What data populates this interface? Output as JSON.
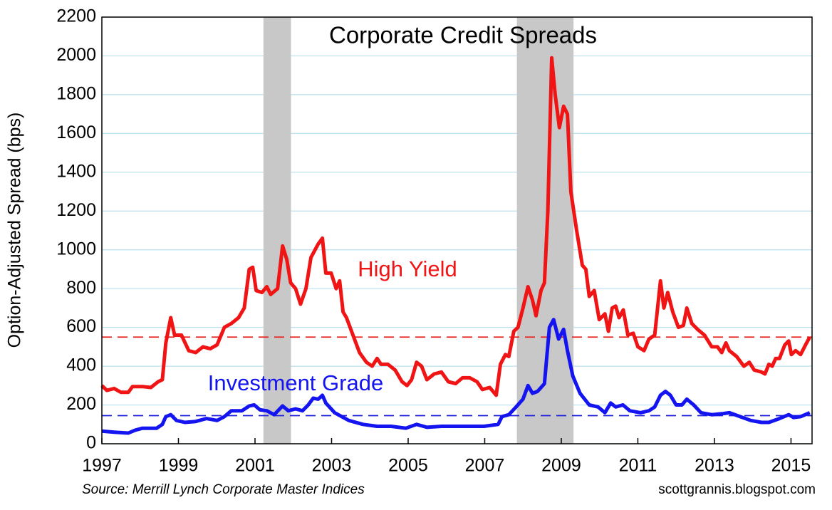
{
  "chart_data": {
    "type": "line",
    "title": "Corporate Credit Spreads",
    "y_label": "Option-Adjusted Spread (bps)",
    "source": "Source: Merrill Lynch Corporate Master Indices",
    "credit": "scottgrannis.blogspot.com",
    "xlim": [
      1997,
      2015.55
    ],
    "ylim": [
      0,
      2200
    ],
    "xticks": [
      1997,
      1999,
      2001,
      2003,
      2005,
      2007,
      2009,
      2011,
      2013,
      2015
    ],
    "yticks": [
      0,
      200,
      400,
      600,
      800,
      1000,
      1200,
      1400,
      1600,
      1800,
      2000,
      2200
    ],
    "grid": true,
    "shaded_periods": [
      [
        2001.22,
        2001.94
      ],
      [
        2007.84,
        2009.32
      ]
    ],
    "shade_color": "#c8c8c8",
    "reference_lines": [
      {
        "value": 550,
        "color": "#e8231f"
      },
      {
        "value": 145,
        "color": "#1f1fe0"
      }
    ],
    "series": [
      {
        "name": "High Yield",
        "color": "#f01414",
        "x": [
          1997.0,
          1997.13,
          1997.32,
          1997.5,
          1997.69,
          1997.8,
          1998.06,
          1998.28,
          1998.47,
          1998.58,
          1998.67,
          1998.8,
          1998.9,
          1999.08,
          1999.27,
          1999.45,
          1999.64,
          1999.83,
          2000.01,
          2000.2,
          2000.38,
          2000.57,
          2000.72,
          2000.85,
          2000.94,
          2001.03,
          2001.18,
          2001.31,
          2001.41,
          2001.59,
          2001.72,
          2001.83,
          2001.93,
          2002.06,
          2002.19,
          2002.33,
          2002.46,
          2002.65,
          2002.76,
          2002.85,
          2002.99,
          2003.12,
          2003.21,
          2003.3,
          2003.39,
          2003.54,
          2003.73,
          2003.91,
          2004.06,
          2004.19,
          2004.29,
          2004.47,
          2004.66,
          2004.84,
          2004.97,
          2005.09,
          2005.22,
          2005.35,
          2005.49,
          2005.68,
          2005.87,
          2006.05,
          2006.24,
          2006.42,
          2006.61,
          2006.8,
          2006.94,
          2007.13,
          2007.3,
          2007.41,
          2007.54,
          2007.63,
          2007.76,
          2007.87,
          2008.0,
          2008.13,
          2008.25,
          2008.34,
          2008.47,
          2008.56,
          2008.65,
          2008.75,
          2008.84,
          2008.95,
          2009.06,
          2009.16,
          2009.25,
          2009.4,
          2009.55,
          2009.64,
          2009.73,
          2009.86,
          2009.99,
          2010.14,
          2010.23,
          2010.33,
          2010.42,
          2010.51,
          2010.62,
          2010.74,
          2010.88,
          2011.0,
          2011.16,
          2011.29,
          2011.44,
          2011.59,
          2011.68,
          2011.78,
          2011.91,
          2012.06,
          2012.19,
          2012.28,
          2012.41,
          2012.56,
          2012.74,
          2012.93,
          2013.08,
          2013.19,
          2013.3,
          2013.39,
          2013.58,
          2013.77,
          2013.91,
          2014.04,
          2014.23,
          2014.32,
          2014.42,
          2014.51,
          2014.6,
          2014.7,
          2014.84,
          2014.94,
          2015.01,
          2015.12,
          2015.25,
          2015.38,
          2015.49
        ],
        "values": [
          300,
          275,
          285,
          265,
          265,
          295,
          295,
          290,
          320,
          330,
          520,
          650,
          560,
          560,
          480,
          470,
          500,
          490,
          510,
          600,
          620,
          650,
          700,
          900,
          910,
          790,
          780,
          810,
          770,
          800,
          1020,
          950,
          830,
          800,
          720,
          800,
          960,
          1030,
          1060,
          880,
          880,
          800,
          840,
          680,
          650,
          570,
          470,
          420,
          400,
          440,
          410,
          410,
          380,
          320,
          300,
          330,
          420,
          400,
          330,
          360,
          370,
          320,
          310,
          340,
          340,
          320,
          280,
          290,
          250,
          410,
          460,
          450,
          580,
          600,
          700,
          810,
          740,
          660,
          790,
          830,
          1200,
          1990,
          1800,
          1630,
          1740,
          1700,
          1300,
          1100,
          920,
          900,
          760,
          790,
          640,
          670,
          580,
          700,
          710,
          650,
          690,
          560,
          570,
          500,
          480,
          540,
          560,
          840,
          700,
          780,
          680,
          600,
          610,
          700,
          620,
          590,
          560,
          500,
          500,
          470,
          520,
          480,
          450,
          400,
          420,
          380,
          370,
          360,
          410,
          400,
          440,
          440,
          510,
          530,
          460,
          480,
          460,
          510,
          550
        ]
      },
      {
        "name": "Investment Grade",
        "color": "#1414f0",
        "x": [
          1997.0,
          1997.32,
          1997.69,
          1997.87,
          1998.06,
          1998.43,
          1998.58,
          1998.67,
          1998.8,
          1998.95,
          1999.17,
          1999.45,
          1999.73,
          2000.01,
          2000.2,
          2000.38,
          2000.66,
          2000.85,
          2000.98,
          2001.13,
          2001.31,
          2001.5,
          2001.72,
          2001.87,
          2002.06,
          2002.24,
          2002.39,
          2002.52,
          2002.65,
          2002.76,
          2002.85,
          2003.08,
          2003.45,
          2003.82,
          2004.19,
          2004.56,
          2004.94,
          2005.22,
          2005.49,
          2005.87,
          2006.42,
          2006.98,
          2007.35,
          2007.45,
          2007.63,
          2007.82,
          2008.0,
          2008.13,
          2008.25,
          2008.38,
          2008.56,
          2008.69,
          2008.8,
          2008.93,
          2009.06,
          2009.16,
          2009.3,
          2009.49,
          2009.73,
          2009.96,
          2010.14,
          2010.29,
          2010.42,
          2010.61,
          2010.79,
          2011.07,
          2011.29,
          2011.44,
          2011.59,
          2011.72,
          2011.85,
          2012.0,
          2012.15,
          2012.28,
          2012.46,
          2012.65,
          2012.93,
          2013.21,
          2013.39,
          2013.67,
          2013.95,
          2014.23,
          2014.42,
          2014.7,
          2014.94,
          2015.07,
          2015.25,
          2015.49
        ],
        "values": [
          65,
          60,
          55,
          70,
          80,
          80,
          100,
          140,
          150,
          120,
          110,
          115,
          130,
          120,
          140,
          170,
          170,
          195,
          200,
          175,
          170,
          150,
          195,
          170,
          180,
          170,
          200,
          235,
          230,
          250,
          210,
          160,
          120,
          100,
          90,
          90,
          80,
          100,
          85,
          90,
          90,
          90,
          100,
          140,
          150,
          190,
          230,
          300,
          260,
          270,
          310,
          600,
          640,
          540,
          590,
          480,
          350,
          260,
          200,
          190,
          160,
          210,
          190,
          200,
          170,
          160,
          170,
          190,
          250,
          270,
          250,
          200,
          200,
          230,
          200,
          160,
          150,
          155,
          160,
          140,
          120,
          110,
          110,
          130,
          150,
          135,
          140,
          160
        ]
      }
    ]
  }
}
